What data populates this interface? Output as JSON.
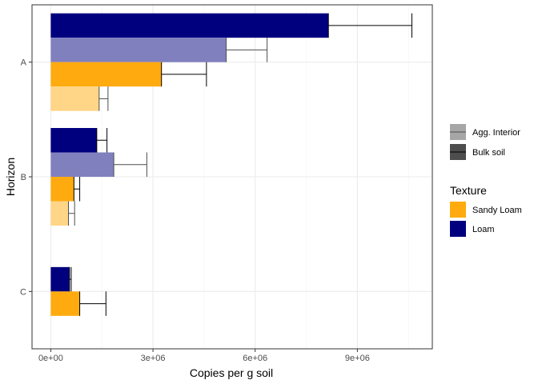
{
  "chart_data": {
    "type": "bar",
    "orientation": "horizontal",
    "xlabel": "Copies per g soil",
    "ylabel": "Horizon",
    "xlim": [
      -550000,
      11200000
    ],
    "x_ticks": [
      0,
      3000000,
      6000000,
      9000000
    ],
    "x_tick_labels": [
      "0e+00",
      "3e+06",
      "6e+06",
      "9e+06"
    ],
    "categories": [
      "A",
      "B",
      "C"
    ],
    "grid": true,
    "legend_position": "right",
    "legend": {
      "fraction_title": "",
      "fraction_entries": [
        "Agg. Interior",
        "Bulk soil"
      ],
      "texture_title": "Texture",
      "texture_entries": [
        "Sandy Loam",
        "Loam"
      ]
    },
    "colors": {
      "loam_bulk": "#00007f",
      "loam_interior": "#8080bf",
      "sandy_bulk": "#ffab0f",
      "sandy_interior": "#ffd587",
      "bulk_legend": "#4d4d4d",
      "interior_legend": "#a6a6a6"
    },
    "series": [
      {
        "texture": "Loam",
        "fraction": "Bulk soil",
        "color_key": "loam_bulk",
        "values": [
          8150000,
          1350000,
          550000
        ],
        "error_high": [
          10600000,
          1650000,
          600000
        ]
      },
      {
        "texture": "Loam",
        "fraction": "Agg. Interior",
        "color_key": "loam_interior",
        "values": [
          5150000,
          1850000,
          null
        ],
        "error_high": [
          6350000,
          2820000,
          null
        ]
      },
      {
        "texture": "Sandy Loam",
        "fraction": "Bulk soil",
        "color_key": "sandy_bulk",
        "values": [
          3250000,
          680000,
          850000
        ],
        "error_high": [
          4570000,
          850000,
          1620000
        ]
      },
      {
        "texture": "Sandy Loam",
        "fraction": "Agg. Interior",
        "color_key": "sandy_interior",
        "values": [
          1420000,
          520000,
          null
        ],
        "error_high": [
          1680000,
          700000,
          null
        ]
      }
    ]
  }
}
